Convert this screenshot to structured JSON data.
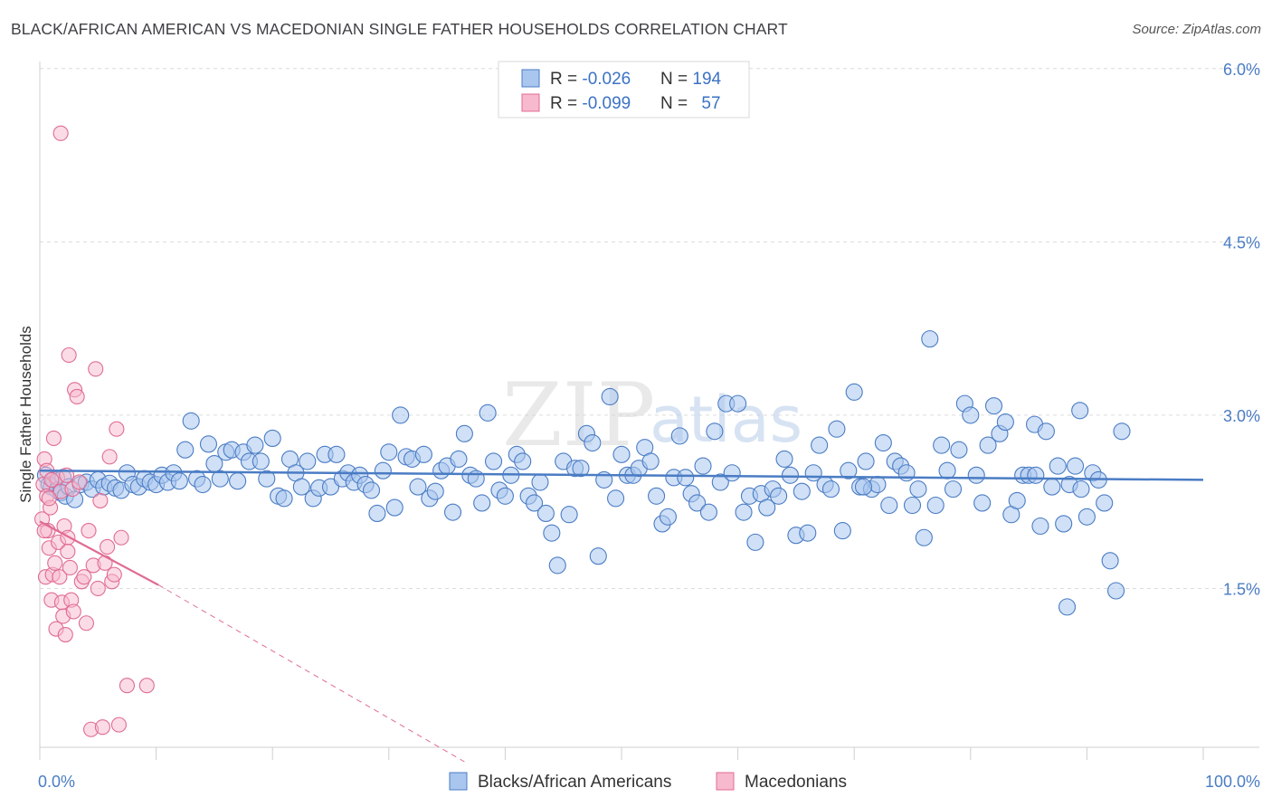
{
  "title": "BLACK/AFRICAN AMERICAN VS MACEDONIAN SINGLE FATHER HOUSEHOLDS CORRELATION CHART",
  "source": "Source: ZipAtlas.com",
  "watermark": {
    "zip": "ZIP",
    "atlas": "atlas"
  },
  "chart_data": {
    "type": "scatter",
    "title": "BLACK/AFRICAN AMERICAN VS MACEDONIAN SINGLE FATHER HOUSEHOLDS CORRELATION CHART",
    "xlabel": "",
    "ylabel": "Single Father Households",
    "xlim": [
      0,
      100
    ],
    "ylim": [
      0.0,
      6.2
    ],
    "x_tick_labels": [
      "0.0%",
      "100.0%"
    ],
    "y_ticks": [
      1.5,
      3.0,
      4.5,
      6.0
    ],
    "y_tick_labels": [
      "1.5%",
      "3.0%",
      "4.5%",
      "6.0%"
    ],
    "grid": true,
    "legend_position": "top-center",
    "colors": {
      "blue": "#4a7cc4",
      "blue_fill": "#a9c6ef",
      "pink": "#e06c93",
      "pink_fill": "#f7b9cd"
    },
    "legend": [
      {
        "r_label": "R = ",
        "r_value": "-0.026",
        "n_label": "N = ",
        "n_value": "194"
      },
      {
        "r_label": "R = ",
        "r_value": "-0.099",
        "n_label": "N = ",
        "n_value": "57"
      }
    ],
    "series": [
      {
        "name": "Blacks/African Americans",
        "color": "#4a7cc4",
        "trend": {
          "x": [
            0,
            100
          ],
          "y": [
            2.52,
            2.44
          ]
        },
        "points": [
          [
            0.5,
            2.48
          ],
          [
            0.8,
            2.4
          ],
          [
            1.0,
            2.38
          ],
          [
            1.2,
            2.44
          ],
          [
            1.5,
            2.35
          ],
          [
            1.8,
            2.33
          ],
          [
            2.0,
            2.46
          ],
          [
            2.2,
            2.3
          ],
          [
            2.5,
            2.38
          ],
          [
            3.0,
            2.27
          ],
          [
            3.5,
            2.4
          ],
          [
            4.0,
            2.42
          ],
          [
            4.5,
            2.36
          ],
          [
            5.0,
            2.44
          ],
          [
            5.5,
            2.38
          ],
          [
            6.0,
            2.41
          ],
          [
            6.5,
            2.37
          ],
          [
            7.0,
            2.35
          ],
          [
            7.5,
            2.5
          ],
          [
            8.0,
            2.4
          ],
          [
            8.5,
            2.38
          ],
          [
            9.0,
            2.45
          ],
          [
            9.5,
            2.42
          ],
          [
            10.0,
            2.4
          ],
          [
            10.5,
            2.48
          ],
          [
            11.0,
            2.42
          ],
          [
            11.5,
            2.5
          ],
          [
            12.0,
            2.43
          ],
          [
            12.5,
            2.7
          ],
          [
            13.0,
            2.95
          ],
          [
            13.5,
            2.45
          ],
          [
            14.0,
            2.4
          ],
          [
            14.5,
            2.75
          ],
          [
            15.0,
            2.58
          ],
          [
            15.5,
            2.45
          ],
          [
            16.0,
            2.68
          ],
          [
            16.5,
            2.7
          ],
          [
            17.0,
            2.43
          ],
          [
            17.5,
            2.68
          ],
          [
            18.0,
            2.6
          ],
          [
            18.5,
            2.74
          ],
          [
            19.0,
            2.6
          ],
          [
            19.5,
            2.45
          ],
          [
            20.0,
            2.8
          ],
          [
            20.5,
            2.3
          ],
          [
            21.0,
            2.28
          ],
          [
            21.5,
            2.62
          ],
          [
            22.0,
            2.5
          ],
          [
            22.5,
            2.38
          ],
          [
            23.0,
            2.6
          ],
          [
            23.5,
            2.28
          ],
          [
            24.0,
            2.37
          ],
          [
            24.5,
            2.66
          ],
          [
            25.0,
            2.38
          ],
          [
            25.5,
            2.66
          ],
          [
            26.0,
            2.45
          ],
          [
            26.5,
            2.5
          ],
          [
            27.0,
            2.42
          ],
          [
            27.5,
            2.48
          ],
          [
            28.0,
            2.4
          ],
          [
            28.5,
            2.35
          ],
          [
            29.0,
            2.15
          ],
          [
            29.5,
            2.52
          ],
          [
            30.0,
            2.68
          ],
          [
            30.5,
            2.2
          ],
          [
            31.0,
            3.0
          ],
          [
            31.5,
            2.64
          ],
          [
            32.0,
            2.62
          ],
          [
            32.5,
            2.38
          ],
          [
            33.0,
            2.66
          ],
          [
            33.5,
            2.28
          ],
          [
            34.0,
            2.34
          ],
          [
            34.5,
            2.52
          ],
          [
            35.0,
            2.56
          ],
          [
            35.5,
            2.16
          ],
          [
            36.0,
            2.62
          ],
          [
            36.5,
            2.84
          ],
          [
            37.0,
            2.48
          ],
          [
            37.5,
            2.45
          ],
          [
            38.0,
            2.24
          ],
          [
            38.5,
            3.02
          ],
          [
            39.0,
            2.6
          ],
          [
            39.5,
            2.35
          ],
          [
            40.0,
            2.3
          ],
          [
            40.5,
            2.48
          ],
          [
            41.0,
            2.66
          ],
          [
            41.5,
            2.6
          ],
          [
            42.0,
            2.3
          ],
          [
            42.5,
            2.24
          ],
          [
            43.0,
            2.42
          ],
          [
            43.5,
            2.15
          ],
          [
            44.0,
            1.98
          ],
          [
            44.5,
            1.7
          ],
          [
            45.0,
            2.6
          ],
          [
            45.5,
            2.14
          ],
          [
            46.0,
            2.54
          ],
          [
            46.5,
            2.54
          ],
          [
            47.0,
            2.84
          ],
          [
            47.5,
            2.76
          ],
          [
            48.0,
            1.78
          ],
          [
            48.5,
            2.44
          ],
          [
            49.0,
            3.16
          ],
          [
            49.5,
            2.28
          ],
          [
            50.0,
            2.66
          ],
          [
            50.5,
            2.48
          ],
          [
            51.0,
            2.48
          ],
          [
            51.5,
            2.54
          ],
          [
            52.0,
            2.72
          ],
          [
            52.5,
            2.6
          ],
          [
            53.0,
            2.3
          ],
          [
            53.5,
            2.06
          ],
          [
            54.0,
            2.12
          ],
          [
            54.5,
            2.46
          ],
          [
            55.0,
            2.82
          ],
          [
            55.5,
            2.46
          ],
          [
            56.0,
            2.32
          ],
          [
            56.5,
            2.24
          ],
          [
            57.0,
            2.56
          ],
          [
            57.5,
            2.16
          ],
          [
            58.0,
            2.86
          ],
          [
            58.5,
            2.42
          ],
          [
            59.0,
            3.1
          ],
          [
            59.5,
            2.5
          ],
          [
            60.0,
            3.1
          ],
          [
            60.5,
            2.16
          ],
          [
            61.0,
            2.3
          ],
          [
            61.5,
            1.9
          ],
          [
            62.0,
            2.32
          ],
          [
            62.5,
            2.2
          ],
          [
            63.0,
            2.36
          ],
          [
            63.5,
            2.3
          ],
          [
            64.0,
            2.62
          ],
          [
            64.5,
            2.48
          ],
          [
            65.0,
            1.96
          ],
          [
            65.5,
            2.34
          ],
          [
            66.0,
            1.98
          ],
          [
            66.5,
            2.5
          ],
          [
            67.0,
            2.74
          ],
          [
            67.5,
            2.4
          ],
          [
            68.0,
            2.36
          ],
          [
            68.5,
            2.88
          ],
          [
            69.0,
            2.0
          ],
          [
            69.5,
            2.52
          ],
          [
            70.0,
            3.2
          ],
          [
            70.5,
            2.38
          ],
          [
            71.0,
            2.6
          ],
          [
            71.5,
            2.36
          ],
          [
            72.0,
            2.4
          ],
          [
            72.5,
            2.76
          ],
          [
            73.0,
            2.22
          ],
          [
            73.5,
            2.6
          ],
          [
            74.0,
            2.56
          ],
          [
            74.5,
            2.5
          ],
          [
            75.0,
            2.22
          ],
          [
            75.5,
            2.36
          ],
          [
            76.0,
            1.94
          ],
          [
            76.5,
            3.66
          ],
          [
            77.0,
            2.22
          ],
          [
            77.5,
            2.74
          ],
          [
            78.0,
            2.52
          ],
          [
            78.5,
            2.36
          ],
          [
            79.0,
            2.7
          ],
          [
            79.5,
            3.1
          ],
          [
            80.0,
            3.0
          ],
          [
            80.5,
            2.48
          ],
          [
            81.0,
            2.24
          ],
          [
            81.5,
            2.74
          ],
          [
            82.0,
            3.08
          ],
          [
            82.5,
            2.84
          ],
          [
            83.0,
            2.94
          ],
          [
            83.5,
            2.14
          ],
          [
            84.0,
            2.26
          ],
          [
            84.5,
            2.48
          ],
          [
            85.0,
            2.48
          ],
          [
            85.5,
            2.92
          ],
          [
            86.0,
            2.04
          ],
          [
            86.5,
            2.86
          ],
          [
            87.0,
            2.38
          ],
          [
            87.5,
            2.56
          ],
          [
            88.0,
            2.06
          ],
          [
            88.5,
            2.4
          ],
          [
            89.0,
            2.56
          ],
          [
            89.5,
            2.36
          ],
          [
            90.0,
            2.12
          ],
          [
            90.5,
            2.5
          ],
          [
            91.0,
            2.44
          ],
          [
            91.5,
            2.24
          ],
          [
            92.0,
            1.74
          ],
          [
            92.5,
            1.48
          ],
          [
            93.0,
            2.86
          ],
          [
            70.8,
            2.38
          ],
          [
            85.6,
            2.48
          ],
          [
            89.4,
            3.04
          ],
          [
            88.3,
            1.34
          ]
        ]
      },
      {
        "name": "Macedonians",
        "color": "#e06c93",
        "trend_solid": {
          "x": [
            0,
            10.2
          ],
          "y": [
            2.08,
            1.53
          ]
        },
        "trend_dashed": {
          "x": [
            10.2,
            36.5
          ],
          "y": [
            1.53,
            0.0
          ]
        },
        "points": [
          [
            0.2,
            2.1
          ],
          [
            0.3,
            2.4
          ],
          [
            0.4,
            2.62
          ],
          [
            0.5,
            1.6
          ],
          [
            0.6,
            2.3
          ],
          [
            0.7,
            2.0
          ],
          [
            0.8,
            1.85
          ],
          [
            0.9,
            2.2
          ],
          [
            1.0,
            1.4
          ],
          [
            1.1,
            1.62
          ],
          [
            1.2,
            2.8
          ],
          [
            1.3,
            1.72
          ],
          [
            1.4,
            1.15
          ],
          [
            1.5,
            2.46
          ],
          [
            1.6,
            1.9
          ],
          [
            1.7,
            1.6
          ],
          [
            1.8,
            2.34
          ],
          [
            1.9,
            1.38
          ],
          [
            2.0,
            1.26
          ],
          [
            2.1,
            2.04
          ],
          [
            2.2,
            1.1
          ],
          [
            2.3,
            2.48
          ],
          [
            2.4,
            1.94
          ],
          [
            2.5,
            3.52
          ],
          [
            2.6,
            1.68
          ],
          [
            2.7,
            1.4
          ],
          [
            2.8,
            2.36
          ],
          [
            2.9,
            1.3
          ],
          [
            3.0,
            3.22
          ],
          [
            3.2,
            3.16
          ],
          [
            3.4,
            2.42
          ],
          [
            3.6,
            1.56
          ],
          [
            3.8,
            1.6
          ],
          [
            4.0,
            1.2
          ],
          [
            4.2,
            2.0
          ],
          [
            4.4,
            0.28
          ],
          [
            4.6,
            1.7
          ],
          [
            4.8,
            3.4
          ],
          [
            5.0,
            1.5
          ],
          [
            5.2,
            2.26
          ],
          [
            5.4,
            0.3
          ],
          [
            5.6,
            1.72
          ],
          [
            5.8,
            1.86
          ],
          [
            6.0,
            2.64
          ],
          [
            6.2,
            1.56
          ],
          [
            6.4,
            1.62
          ],
          [
            6.6,
            2.88
          ],
          [
            6.8,
            0.32
          ],
          [
            7.0,
            1.94
          ],
          [
            1.8,
            5.44
          ],
          [
            7.5,
            0.66
          ],
          [
            9.2,
            0.66
          ],
          [
            0.6,
            2.52
          ],
          [
            1.0,
            2.44
          ],
          [
            0.4,
            2.0
          ],
          [
            0.8,
            2.28
          ],
          [
            2.4,
            1.82
          ]
        ]
      }
    ]
  },
  "bottom_legend": [
    {
      "label": "Blacks/African Americans"
    },
    {
      "label": "Macedonians"
    }
  ]
}
